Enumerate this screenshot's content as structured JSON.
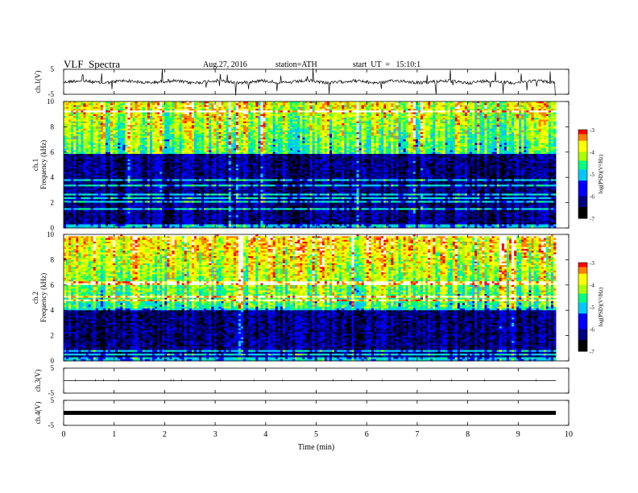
{
  "header": {
    "title": "VLF  Spectra",
    "date": "Aug.27, 2016",
    "station": "station=ATH",
    "start": "start  UT  =   15:10:1"
  },
  "chart_data": {
    "type": "heatmap",
    "x_axis": {
      "label": "Time  (min)",
      "range": [
        0,
        10
      ],
      "ticks": [
        "0",
        "1",
        "2",
        "3",
        "4",
        "5",
        "6",
        "7",
        "8",
        "9",
        "10"
      ],
      "data_extent": [
        0,
        9.82
      ]
    },
    "panels": [
      {
        "kind": "waveform",
        "ylabel": "ch.1(V)",
        "ylim": [
          -5,
          5
        ],
        "ticks": [
          "5",
          "-5"
        ],
        "trace_level": 0,
        "noise": "high"
      },
      {
        "kind": "spectrogram",
        "ylabel_channel": "ch.1",
        "ylabel": "Frequency  (kHz)",
        "ylim": [
          0,
          10
        ],
        "ticks": [
          "0",
          "2",
          "4",
          "6",
          "8",
          "10"
        ],
        "band_edge_khz": 5.8,
        "colorbar": {
          "label": "log(PSD)(V²/Hz)",
          "range": [
            -7,
            -3
          ],
          "ticks": [
            "-3",
            "-4",
            "-5",
            "-6",
            "-7"
          ]
        }
      },
      {
        "kind": "spectrogram",
        "ylabel_channel": "ch.2",
        "ylabel": "Frequency  (kHz)",
        "ylim": [
          0,
          10
        ],
        "ticks": [
          "0",
          "2",
          "4",
          "6",
          "8",
          "10"
        ],
        "band_edge_khz": 4.1,
        "colorbar": {
          "label": "log(PSD)(V²/Hz)",
          "range": [
            -7,
            -3
          ],
          "ticks": [
            "-3",
            "-4",
            "-5",
            "-6",
            "-7"
          ]
        }
      },
      {
        "kind": "waveform",
        "ylabel": "ch.3(V)",
        "ylim": [
          -5,
          5
        ],
        "ticks": [
          "5",
          "-5"
        ],
        "trace_level": 0,
        "noise": "flat"
      },
      {
        "kind": "waveform",
        "ylabel": "ch.4(V)",
        "ylim": [
          -5,
          5
        ],
        "ticks": [
          "5",
          "-5"
        ],
        "trace_level": 0,
        "noise": "band"
      }
    ],
    "colormap": [
      "#000000",
      "#000080",
      "#0000ff",
      "#00c8ff",
      "#00ff80",
      "#aaff00",
      "#ffff00",
      "#ff8000",
      "#ff0000",
      "#ffffff"
    ]
  }
}
